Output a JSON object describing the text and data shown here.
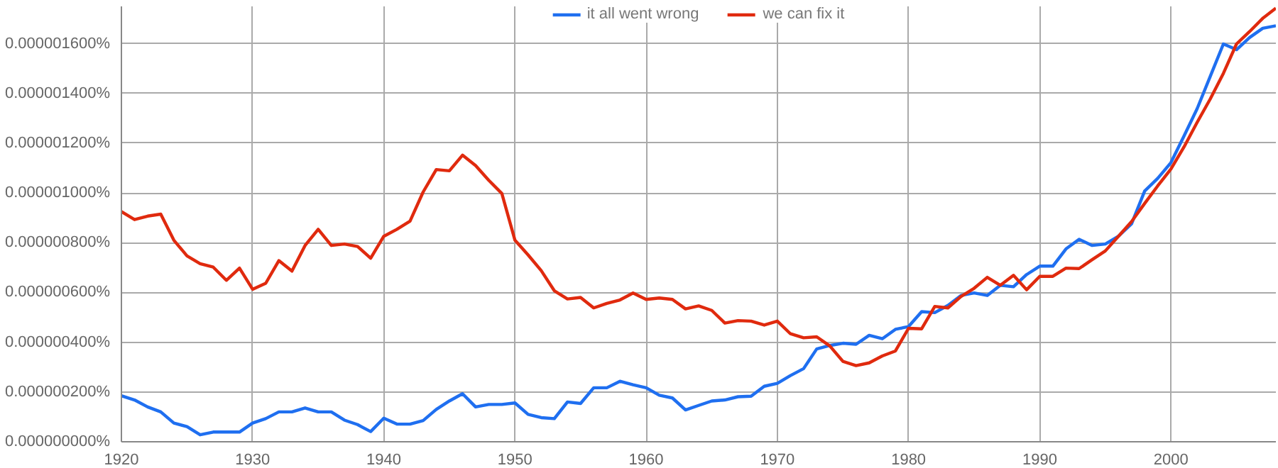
{
  "chart_data": {
    "type": "line",
    "x": [
      1920,
      1921,
      1922,
      1923,
      1924,
      1925,
      1926,
      1927,
      1928,
      1929,
      1930,
      1931,
      1932,
      1933,
      1934,
      1935,
      1936,
      1937,
      1938,
      1939,
      1940,
      1941,
      1942,
      1943,
      1944,
      1945,
      1946,
      1947,
      1948,
      1949,
      1950,
      1951,
      1952,
      1953,
      1954,
      1955,
      1956,
      1957,
      1958,
      1959,
      1960,
      1961,
      1962,
      1963,
      1964,
      1965,
      1966,
      1967,
      1968,
      1969,
      1970,
      1971,
      1972,
      1973,
      1974,
      1975,
      1976,
      1977,
      1978,
      1979,
      1980,
      1981,
      1982,
      1983,
      1984,
      1985,
      1986,
      1987,
      1988,
      1989,
      1990,
      1991,
      1992,
      1993,
      1994,
      1995,
      1996,
      1997,
      1998,
      1999,
      2000,
      2001,
      2002,
      2003,
      2004,
      2005,
      2006,
      2007,
      2008
    ],
    "series": [
      {
        "name": "it all went wrong",
        "color": "#1f6ff0",
        "values": [
          1.85e-07,
          1.68e-07,
          1.4e-07,
          1.2e-07,
          7.5e-08,
          6.1e-08,
          2.8e-08,
          3.9e-08,
          3.9e-08,
          3.9e-08,
          7.5e-08,
          9.3e-08,
          1.2e-07,
          1.2e-07,
          1.36e-07,
          1.2e-07,
          1.2e-07,
          8.7e-08,
          6.9e-08,
          4.1e-08,
          9.5e-08,
          7.1e-08,
          7.1e-08,
          8.5e-08,
          1.3e-07,
          1.64e-07,
          1.93e-07,
          1.4e-07,
          1.5e-07,
          1.5e-07,
          1.56e-07,
          1.1e-07,
          9.7e-08,
          9.3e-08,
          1.6e-07,
          1.54e-07,
          2.17e-07,
          2.17e-07,
          2.43e-07,
          2.29e-07,
          2.17e-07,
          1.87e-07,
          1.76e-07,
          1.28e-07,
          1.46e-07,
          1.64e-07,
          1.68e-07,
          1.81e-07,
          1.83e-07,
          2.23e-07,
          2.35e-07,
          2.66e-07,
          2.94e-07,
          3.73e-07,
          3.87e-07,
          3.96e-07,
          3.92e-07,
          4.28e-07,
          4.14e-07,
          4.52e-07,
          4.63e-07,
          5.23e-07,
          5.19e-07,
          5.48e-07,
          5.88e-07,
          5.98e-07,
          5.88e-07,
          6.29e-07,
          6.23e-07,
          6.72e-07,
          7.06e-07,
          7.06e-07,
          7.75e-07,
          8.14e-07,
          7.89e-07,
          7.95e-07,
          8.26e-07,
          8.76e-07,
          1.008e-06,
          1.059e-06,
          1.122e-06,
          1.229e-06,
          1.339e-06,
          1.469e-06,
          1.599e-06,
          1.576e-06,
          1.625e-06,
          1.662e-06,
          1.672e-06
        ]
      },
      {
        "name": "we can fix it",
        "color": "#e02a0e",
        "values": [
          9.25e-07,
          8.93e-07,
          9.07e-07,
          9.15e-07,
          8.1e-07,
          7.47e-07,
          7.16e-07,
          7.02e-07,
          6.49e-07,
          6.98e-07,
          6.13e-07,
          6.37e-07,
          7.28e-07,
          6.86e-07,
          7.89e-07,
          8.54e-07,
          7.89e-07,
          7.95e-07,
          7.85e-07,
          7.38e-07,
          8.26e-07,
          8.54e-07,
          8.87e-07,
          1.004e-06,
          1.094e-06,
          1.089e-06,
          1.152e-06,
          1.11e-06,
          1.051e-06,
          9.98e-07,
          8.1e-07,
          7.51e-07,
          6.88e-07,
          6.07e-07,
          5.74e-07,
          5.8e-07,
          5.38e-07,
          5.56e-07,
          5.7e-07,
          5.98e-07,
          5.72e-07,
          5.78e-07,
          5.72e-07,
          5.34e-07,
          5.46e-07,
          5.28e-07,
          4.77e-07,
          4.87e-07,
          4.85e-07,
          4.69e-07,
          4.85e-07,
          4.34e-07,
          4.18e-07,
          4.22e-07,
          3.85e-07,
          3.23e-07,
          3.06e-07,
          3.17e-07,
          3.45e-07,
          3.65e-07,
          4.56e-07,
          4.54e-07,
          5.44e-07,
          5.38e-07,
          5.84e-07,
          6.17e-07,
          6.61e-07,
          6.29e-07,
          6.69e-07,
          6.11e-07,
          6.65e-07,
          6.65e-07,
          6.98e-07,
          6.96e-07,
          7.32e-07,
          7.67e-07,
          8.26e-07,
          8.85e-07,
          9.58e-07,
          1.029e-06,
          1.096e-06,
          1.185e-06,
          1.284e-06,
          1.378e-06,
          1.481e-06,
          1.599e-06,
          1.649e-06,
          1.702e-06,
          1.743e-06
        ]
      }
    ],
    "xlim": [
      1920,
      2008
    ],
    "xticks": [
      1920,
      1930,
      1940,
      1950,
      1960,
      1970,
      1980,
      1990,
      2000
    ],
    "ylim": [
      0,
      1.75e-06
    ],
    "yticks": [
      {
        "value": 0,
        "label": "0.000000000%"
      },
      {
        "value": 2e-07,
        "label": "0.000000200%"
      },
      {
        "value": 4e-07,
        "label": "0.000000400%"
      },
      {
        "value": 6e-07,
        "label": "0.000000600%"
      },
      {
        "value": 8e-07,
        "label": "0.000000800%"
      },
      {
        "value": 1e-06,
        "label": "0.000001000%"
      },
      {
        "value": 1.2e-06,
        "label": "0.000001200%"
      },
      {
        "value": 1.4e-06,
        "label": "0.000001400%"
      },
      {
        "value": 1.6e-06,
        "label": "0.000001600%"
      }
    ],
    "grid": true,
    "legend": "top",
    "marker": "none",
    "line_style": "solid"
  }
}
